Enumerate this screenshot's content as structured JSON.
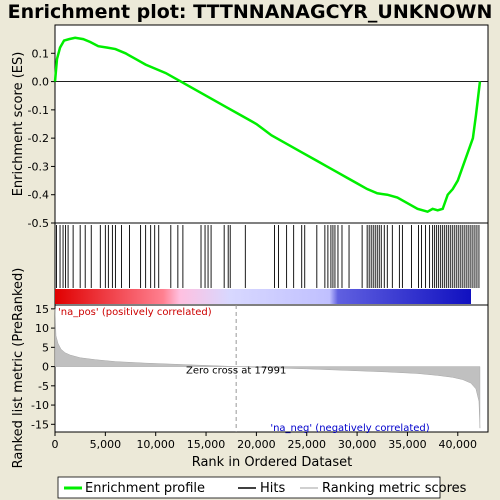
{
  "chart_data": {
    "type": "line",
    "title": "Enrichment plot: TTTNNANAGCYR_UNKNOWN",
    "panels": {
      "es": {
        "ylabel": "Enrichment score (ES)",
        "ylim": [
          -0.5,
          0.2
        ],
        "yticks": [
          "0.1",
          "0.0",
          "-0.1",
          "-0.2",
          "-0.3",
          "-0.4",
          "-0.5"
        ],
        "color": "#00ee00",
        "series": {
          "x": [
            0,
            200,
            500,
            900,
            1400,
            2000,
            2800,
            3500,
            4300,
            5200,
            6000,
            7000,
            8000,
            9000,
            10000,
            11000,
            12500,
            14000,
            15500,
            17000,
            18500,
            20000,
            21500,
            23000,
            24500,
            26000,
            27000,
            28000,
            29000,
            30000,
            31000,
            32000,
            33000,
            34000,
            35000,
            36000,
            37000,
            37500,
            38000,
            38500,
            39000,
            39500,
            40000,
            40500,
            41000,
            41500,
            41800,
            42000,
            42200
          ],
          "y": [
            0.0,
            0.08,
            0.12,
            0.145,
            0.15,
            0.155,
            0.15,
            0.14,
            0.125,
            0.12,
            0.115,
            0.1,
            0.08,
            0.06,
            0.045,
            0.03,
            0.0,
            -0.03,
            -0.06,
            -0.09,
            -0.12,
            -0.15,
            -0.19,
            -0.22,
            -0.25,
            -0.28,
            -0.3,
            -0.32,
            -0.34,
            -0.36,
            -0.38,
            -0.395,
            -0.4,
            -0.41,
            -0.43,
            -0.45,
            -0.46,
            -0.45,
            -0.455,
            -0.45,
            -0.4,
            -0.38,
            -0.35,
            -0.3,
            -0.25,
            -0.2,
            -0.12,
            -0.06,
            0.0
          ]
        }
      },
      "hits": {
        "label": "Hits",
        "positions": [
          150,
          500,
          800,
          1050,
          1300,
          1800,
          2500,
          3000,
          3600,
          4500,
          5000,
          5300,
          5700,
          6000,
          6600,
          7400,
          8500,
          9000,
          9500,
          9900,
          10300,
          11500,
          12200,
          12700,
          14500,
          14900,
          15200,
          15500,
          16800,
          17200,
          17400,
          18900,
          21800,
          22200,
          23000,
          23700,
          24500,
          24800,
          26000,
          26800,
          27100,
          27400,
          27600,
          27800,
          28100,
          28500,
          29200,
          30500,
          31000,
          31200,
          31400,
          31600,
          31800,
          32000,
          32200,
          32400,
          32700,
          33000,
          33500,
          34200,
          34500,
          35400,
          36100,
          36400,
          36800,
          37200,
          37500,
          37700,
          37900,
          38100,
          38300,
          38500,
          38700,
          38900,
          39100,
          39300,
          39500,
          39700,
          39900,
          40100,
          40300,
          40500,
          40700,
          40900,
          41100,
          41300,
          41500,
          41700,
          41900,
          42100
        ]
      },
      "metric": {
        "ylabel": "Ranked list metric (PreRanked)",
        "ylim": [
          -17,
          16
        ],
        "yticks": [
          "15",
          "10",
          "5",
          "0",
          "-5",
          "-10",
          "-15"
        ],
        "zero_cross": 17991,
        "zero_cross_label": "Zero cross at 17991",
        "pos_label": "'na_pos' (positively correlated)",
        "neg_label": "'na_neg' (negatively correlated)",
        "curve": {
          "x": [
            0,
            100,
            300,
            600,
            1000,
            1500,
            2500,
            4000,
            6000,
            9000,
            12000,
            15000,
            17991,
            21000,
            25000,
            29000,
            33000,
            36000,
            38000,
            39500,
            40500,
            41300,
            41800,
            42100,
            42200
          ],
          "y": [
            15,
            8,
            6,
            4.5,
            3.6,
            3.0,
            2.3,
            1.8,
            1.3,
            0.9,
            0.6,
            0.3,
            0.0,
            -0.3,
            -0.6,
            -1.0,
            -1.4,
            -1.8,
            -2.3,
            -2.8,
            -3.4,
            -4.3,
            -5.8,
            -9,
            -16
          ]
        }
      }
    },
    "xaxis": {
      "label": "Rank in Ordered Dataset",
      "xlim": [
        0,
        43000
      ],
      "ticks": [
        "0",
        "5,000",
        "10,000",
        "15,000",
        "20,000",
        "25,000",
        "30,000",
        "35,000",
        "40,000"
      ]
    },
    "legend": {
      "placement": "bottom",
      "entries": [
        "Enrichment profile",
        "Hits",
        "Ranking metric scores"
      ]
    }
  }
}
